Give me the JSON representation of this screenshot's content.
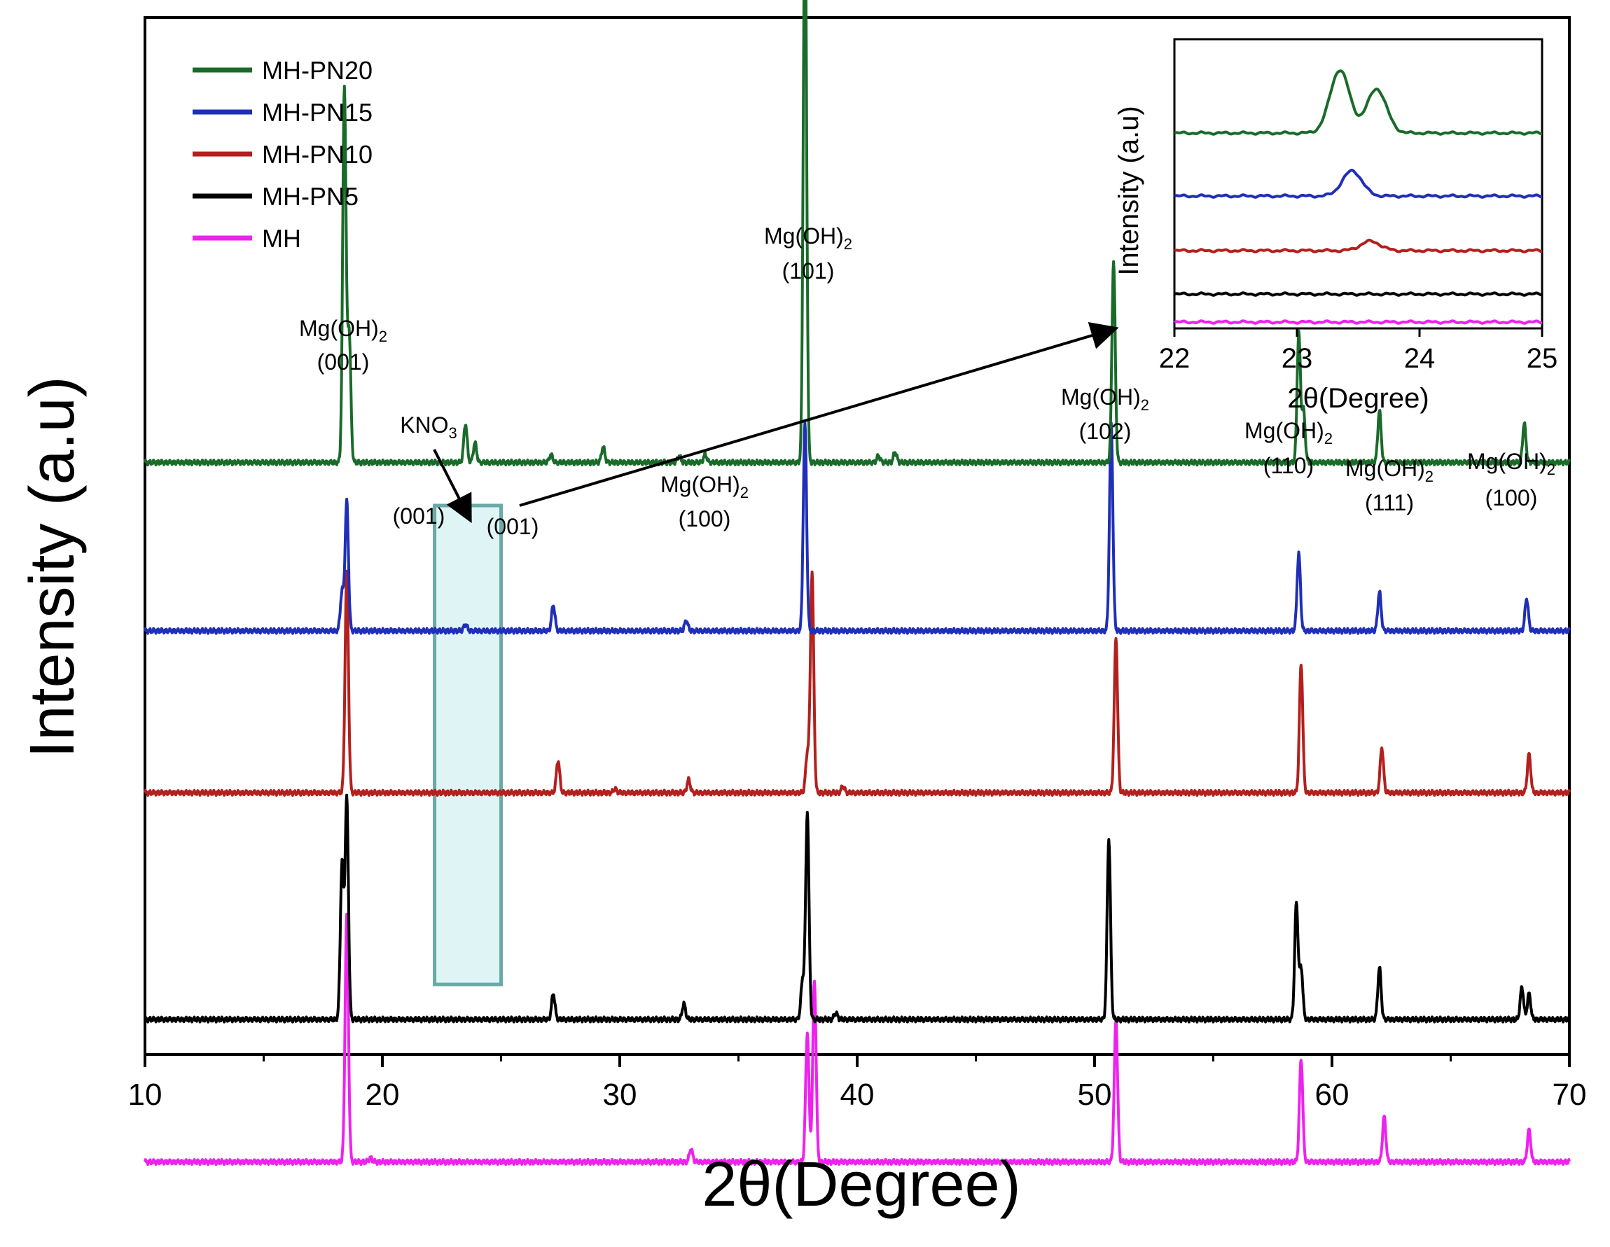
{
  "chart_data": {
    "type": "line",
    "xlabel": "2θ(Degree)",
    "ylabel": "Intensity (a.u)",
    "xlim": [
      10,
      70
    ],
    "xticks": [
      "10",
      "20",
      "30",
      "40",
      "50",
      "60",
      "70"
    ],
    "grid": false,
    "legend": {
      "position": "top-left",
      "entries": [
        {
          "name": "MH-PN20",
          "color": "#1a6b2a"
        },
        {
          "name": "MH-PN15",
          "color": "#1f2fb8"
        },
        {
          "name": "MH-PN10",
          "color": "#b3201d"
        },
        {
          "name": "MH-PN5",
          "color": "#000000"
        },
        {
          "name": "MH",
          "color": "#ee22ee"
        }
      ]
    },
    "series": [
      {
        "name": "MH-PN20",
        "color": "#1a6b2a",
        "baseline": 4.3,
        "peaks": [
          [
            18.4,
            2.9
          ],
          [
            18.6,
            1.0
          ],
          [
            23.5,
            0.3
          ],
          [
            23.9,
            0.15
          ],
          [
            27.1,
            0.06
          ],
          [
            29.3,
            0.12
          ],
          [
            32.5,
            0.05
          ],
          [
            33.6,
            0.06
          ],
          [
            37.8,
            4.4
          ],
          [
            40.9,
            0.05
          ],
          [
            41.6,
            0.08
          ],
          [
            50.8,
            1.55
          ],
          [
            58.6,
            1.0
          ],
          [
            58.8,
            0.4
          ],
          [
            62.0,
            0.4
          ],
          [
            68.1,
            0.3
          ]
        ]
      },
      {
        "name": "MH-PN15",
        "color": "#1f2fb8",
        "baseline": 3.0,
        "peaks": [
          [
            18.3,
            0.3
          ],
          [
            18.5,
            1.0
          ],
          [
            23.5,
            0.05
          ],
          [
            27.2,
            0.2
          ],
          [
            32.8,
            0.08
          ],
          [
            37.8,
            1.6
          ],
          [
            50.7,
            1.6
          ],
          [
            58.6,
            0.6
          ],
          [
            62.0,
            0.3
          ],
          [
            68.2,
            0.25
          ]
        ]
      },
      {
        "name": "MH-PN10",
        "color": "#b3201d",
        "baseline": 1.75,
        "peaks": [
          [
            18.5,
            1.7
          ],
          [
            27.4,
            0.25
          ],
          [
            29.8,
            0.03
          ],
          [
            32.9,
            0.1
          ],
          [
            37.9,
            0.3
          ],
          [
            38.1,
            1.7
          ],
          [
            39.4,
            0.05
          ],
          [
            50.9,
            1.2
          ],
          [
            58.7,
            1.0
          ],
          [
            62.1,
            0.35
          ],
          [
            68.3,
            0.3
          ]
        ]
      },
      {
        "name": "MH-PN5",
        "color": "#000000",
        "baseline": 0.0,
        "peaks": [
          [
            18.3,
            1.2
          ],
          [
            18.5,
            1.7
          ],
          [
            27.2,
            0.2
          ],
          [
            32.7,
            0.12
          ],
          [
            37.7,
            0.3
          ],
          [
            37.9,
            1.6
          ],
          [
            39.1,
            0.05
          ],
          [
            50.6,
            1.4
          ],
          [
            58.5,
            0.9
          ],
          [
            58.7,
            0.4
          ],
          [
            62.0,
            0.4
          ],
          [
            68.0,
            0.25
          ],
          [
            68.3,
            0.2
          ]
        ]
      },
      {
        "name": "MH",
        "color": "#ee22ee",
        "baseline": -1.1,
        "peaks": [
          [
            18.5,
            1.9
          ],
          [
            19.5,
            0.03
          ],
          [
            33.0,
            0.1
          ],
          [
            37.9,
            1.0
          ],
          [
            38.2,
            1.4
          ],
          [
            50.9,
            1.1
          ],
          [
            58.7,
            0.8
          ],
          [
            62.2,
            0.35
          ],
          [
            68.3,
            0.25
          ]
        ]
      }
    ],
    "annotations": [
      {
        "label": "Mg(OH)",
        "sub": "2",
        "index": "(001)",
        "x": 18.4
      },
      {
        "label": "Mg(OH)",
        "sub": "2",
        "index": "(101)",
        "x": 37.9
      },
      {
        "label": "Mg(OH)",
        "sub": "2",
        "index": "(100)",
        "x": 33.5
      },
      {
        "label": "Mg(OH)",
        "sub": "2",
        "index": "(102)",
        "x": 50.7
      },
      {
        "label": "Mg(OH)",
        "sub": "2",
        "index": "(110)",
        "x": 58.6
      },
      {
        "label": "Mg(OH)",
        "sub": "2",
        "index": "(111)",
        "x": 62.2
      },
      {
        "label": "Mg(OH)",
        "sub": "2",
        "index": "(100)",
        "x": 68.2
      }
    ],
    "kno3_annotation": {
      "label": "KNO",
      "sub": "3",
      "left_index": "(001)",
      "right_index": "(001)",
      "region": [
        22.2,
        25.0
      ]
    },
    "inset": {
      "xlabel": "2θ(Degree)",
      "ylabel": "Intensity (a.u)",
      "xlim": [
        22,
        25
      ],
      "xticks": [
        "22",
        "23",
        "24",
        "25"
      ],
      "series": [
        {
          "name": "MH-PN20",
          "color": "#1a6b2a",
          "peaks": [
            [
              23.35,
              1.0
            ],
            [
              23.65,
              0.7
            ]
          ]
        },
        {
          "name": "MH-PN15",
          "color": "#1f2fb8",
          "peaks": [
            [
              23.45,
              0.4
            ]
          ]
        },
        {
          "name": "MH-PN10",
          "color": "#b3201d",
          "peaks": [
            [
              23.6,
              0.15
            ]
          ]
        },
        {
          "name": "MH-PN5",
          "color": "#000000",
          "peaks": []
        },
        {
          "name": "MH",
          "color": "#ee22ee",
          "peaks": []
        }
      ]
    }
  }
}
